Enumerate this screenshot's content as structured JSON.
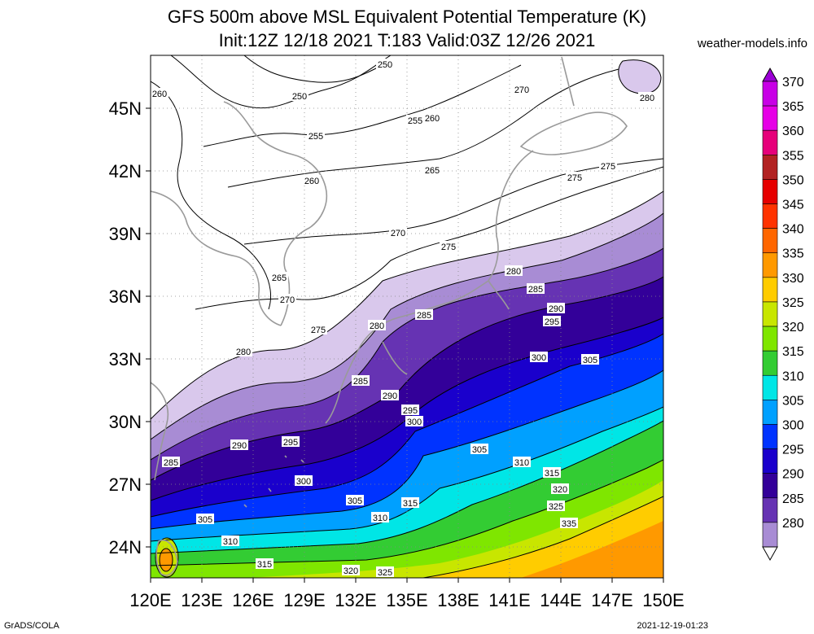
{
  "title_line1": "GFS 500m above MSL Equivalent Potential Temperature (K)",
  "title_line2": "Init:12Z 12/18 2021 T:183 Valid:03Z 12/26 2021",
  "site": "weather-models.info",
  "credit": "GrADS/COLA",
  "timestamp": "2021-12-19-01:23",
  "lat_ticks": [
    "45N",
    "42N",
    "39N",
    "36N",
    "33N",
    "30N",
    "27N",
    "24N"
  ],
  "lon_ticks": [
    "120E",
    "123E",
    "126E",
    "129E",
    "132E",
    "135E",
    "138E",
    "141E",
    "144E",
    "147E",
    "150E"
  ],
  "colorbar": {
    "levels": [
      "370",
      "365",
      "360",
      "355",
      "350",
      "345",
      "340",
      "335",
      "330",
      "325",
      "320",
      "315",
      "310",
      "305",
      "300",
      "295",
      "290",
      "285",
      "280"
    ],
    "colors": [
      "#9c00d6",
      "#c800e6",
      "#e600e6",
      "#e6007a",
      "#b22222",
      "#e60000",
      "#ff3300",
      "#ff6600",
      "#ff9900",
      "#ffcc00",
      "#c8e600",
      "#7fe600",
      "#33cc33",
      "#00e6e6",
      "#00a0ff",
      "#0033ff",
      "#1a00cc",
      "#330099",
      "#6633b3",
      "#a88cd4",
      "#d9c8ec"
    ]
  },
  "contour_labels": [
    "250",
    "255",
    "260",
    "265",
    "270",
    "275",
    "280",
    "285",
    "290",
    "295",
    "300",
    "305",
    "310",
    "315",
    "320",
    "325",
    "335"
  ]
}
